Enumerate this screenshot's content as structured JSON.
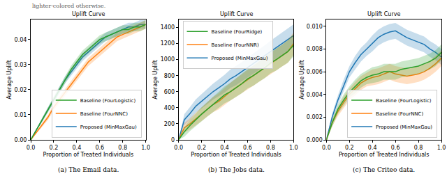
{
  "note": "lighter-colored otherwise.",
  "chart_data": [
    {
      "type": "line",
      "title": "Uplift Curve",
      "caption": "(a) The Email data.",
      "x_label": "Proportion of Treated Individuals",
      "y_label": "Average Uplift",
      "x": [
        0,
        0.05,
        0.1,
        0.15,
        0.2,
        0.25,
        0.3,
        0.35,
        0.4,
        0.45,
        0.5,
        0.55,
        0.6,
        0.65,
        0.7,
        0.75,
        0.8,
        0.85,
        0.9,
        0.95,
        1.0
      ],
      "series": [
        {
          "name": "Proposed (MinMaxGau)",
          "color": "#1f77b4",
          "values": [
            0,
            0.004,
            0.008,
            0.012,
            0.016,
            0.02,
            0.024,
            0.027,
            0.03,
            0.033,
            0.035,
            0.037,
            0.039,
            0.041,
            0.042,
            0.043,
            0.044,
            0.045,
            0.045,
            0.046,
            0.046
          ],
          "error": [
            0,
            0.0005,
            0.0008,
            0.001,
            0.0012,
            0.0013,
            0.0014,
            0.0015,
            0.0015,
            0.0016,
            0.0016,
            0.0016,
            0.0017,
            0.0017,
            0.0017,
            0.0017,
            0.0017,
            0.0017,
            0.0017,
            0.0017,
            0.0017
          ]
        },
        {
          "name": "Baseline (FourNNC)",
          "color": "#ff7f0e",
          "values": [
            0,
            0.003,
            0.006,
            0.009,
            0.013,
            0.016,
            0.019,
            0.022,
            0.025,
            0.028,
            0.031,
            0.033,
            0.035,
            0.037,
            0.039,
            0.041,
            0.042,
            0.043,
            0.044,
            0.045,
            0.046
          ],
          "error": [
            0,
            0.0005,
            0.0008,
            0.001,
            0.0012,
            0.0013,
            0.0014,
            0.0015,
            0.0015,
            0.0016,
            0.0016,
            0.0016,
            0.0017,
            0.0017,
            0.0017,
            0.0017,
            0.0017,
            0.0017,
            0.0017,
            0.0017,
            0.0017
          ]
        },
        {
          "name": "Baseline (FourLogistic)",
          "color": "#2ca02c",
          "values": [
            0,
            0.004,
            0.008,
            0.012,
            0.016,
            0.02,
            0.024,
            0.028,
            0.031,
            0.034,
            0.036,
            0.038,
            0.04,
            0.041,
            0.042,
            0.043,
            0.044,
            0.044,
            0.045,
            0.045,
            0.046
          ],
          "error": [
            0,
            0.0005,
            0.0008,
            0.001,
            0.0012,
            0.0013,
            0.0014,
            0.0015,
            0.0015,
            0.0016,
            0.0016,
            0.0016,
            0.0017,
            0.0017,
            0.0017,
            0.0017,
            0.0017,
            0.0017,
            0.0017,
            0.0017,
            0.0017
          ]
        }
      ],
      "xlim": [
        0,
        1.0
      ],
      "xticks": [
        {
          "value": 0,
          "label": "0.0"
        },
        {
          "value": 0.2,
          "label": "0.2"
        },
        {
          "value": 0.4,
          "label": "0.4"
        },
        {
          "value": 0.6,
          "label": "0.6"
        },
        {
          "value": 0.8,
          "label": "0.8"
        },
        {
          "value": 1.0,
          "label": "1.0"
        }
      ],
      "ylim": [
        0,
        0.048
      ],
      "yticks": [
        {
          "value": 0,
          "label": "0.00"
        },
        0.01,
        0.02,
        0.03,
        0.04
      ],
      "legend": "lower right",
      "grid": false
    },
    {
      "type": "line",
      "title": "Uplift Curve",
      "caption": "(b) The Jobs data.",
      "x_label": "Proportion of Treated Individuals",
      "y_label": "Average Uplift",
      "x": [
        0,
        0.05,
        0.1,
        0.15,
        0.2,
        0.25,
        0.3,
        0.35,
        0.4,
        0.45,
        0.5,
        0.55,
        0.6,
        0.65,
        0.7,
        0.75,
        0.8,
        0.85,
        0.9,
        0.95,
        1.0
      ],
      "series": [
        {
          "name": "Proposed (MinMaxGau)",
          "color": "#1f77b4",
          "values": [
            0,
            250,
            330,
            420,
            480,
            540,
            600,
            650,
            700,
            760,
            800,
            850,
            900,
            950,
            1000,
            1050,
            1100,
            1150,
            1200,
            1250,
            1300
          ],
          "error": [
            0,
            70,
            80,
            85,
            90,
            95,
            100,
            105,
            110,
            115,
            120,
            120,
            125,
            125,
            130,
            130,
            135,
            135,
            140,
            140,
            140
          ]
        },
        {
          "name": "Baseline (FourNNR)",
          "color": "#ff7f0e",
          "values": [
            0,
            150,
            200,
            260,
            320,
            380,
            440,
            480,
            540,
            600,
            650,
            700,
            750,
            800,
            850,
            900,
            950,
            1000,
            1050,
            1100,
            1200
          ],
          "error": [
            0,
            60,
            70,
            80,
            85,
            90,
            95,
            100,
            105,
            110,
            115,
            120,
            120,
            125,
            125,
            130,
            130,
            135,
            135,
            140,
            140
          ]
        },
        {
          "name": "Baseline (FourRidge)",
          "color": "#2ca02c",
          "values": [
            0,
            100,
            180,
            250,
            320,
            380,
            440,
            500,
            560,
            600,
            650,
            700,
            760,
            800,
            850,
            900,
            960,
            1000,
            1050,
            1100,
            1180
          ],
          "error": [
            0,
            60,
            70,
            80,
            85,
            90,
            95,
            100,
            105,
            110,
            115,
            120,
            120,
            125,
            125,
            130,
            130,
            135,
            135,
            140,
            140
          ]
        }
      ],
      "xlim": [
        0,
        1.0
      ],
      "xticks": [
        {
          "value": 0,
          "label": "0.0"
        },
        {
          "value": 0.2,
          "label": "0.2"
        },
        {
          "value": 0.4,
          "label": "0.4"
        },
        {
          "value": 0.6,
          "label": "0.6"
        },
        {
          "value": 0.8,
          "label": "0.8"
        },
        {
          "value": 1.0,
          "label": "1.0"
        }
      ],
      "ylim": [
        0,
        1500
      ],
      "yticks": [
        0,
        200,
        400,
        600,
        800,
        1000,
        1200,
        1400
      ],
      "legend": "upper left",
      "grid": false
    },
    {
      "type": "line",
      "title": "Uplift Curve",
      "caption": "(c) The Criteo data.",
      "x_label": "Proportion of Treated Individuals",
      "y_label": "Average Uplift",
      "x": [
        0,
        0.05,
        0.1,
        0.15,
        0.2,
        0.25,
        0.3,
        0.35,
        0.4,
        0.45,
        0.5,
        0.55,
        0.6,
        0.65,
        0.7,
        0.75,
        0.8,
        0.85,
        0.9,
        0.95,
        1.0
      ],
      "series": [
        {
          "name": "Proposed (MinMaxGau)",
          "color": "#1f77b4",
          "values": [
            0,
            0.002,
            0.0035,
            0.0048,
            0.006,
            0.0068,
            0.0075,
            0.008,
            0.0085,
            0.009,
            0.0093,
            0.0095,
            0.0096,
            0.0093,
            0.009,
            0.0088,
            0.0086,
            0.0084,
            0.008,
            0.0077,
            0.0073
          ],
          "error": [
            0,
            0.0003,
            0.0004,
            0.0005,
            0.0005,
            0.0006,
            0.0006,
            0.0006,
            0.0007,
            0.0007,
            0.0007,
            0.0007,
            0.0007,
            0.0007,
            0.0007,
            0.0007,
            0.0007,
            0.0007,
            0.0007,
            0.0007,
            0.0007
          ]
        },
        {
          "name": "Baseline (FourNNC)",
          "color": "#ff7f0e",
          "values": [
            0,
            0.0015,
            0.0025,
            0.0033,
            0.004,
            0.0045,
            0.005,
            0.0053,
            0.0055,
            0.0056,
            0.0058,
            0.006,
            0.0058,
            0.0057,
            0.0056,
            0.0057,
            0.0058,
            0.006,
            0.0063,
            0.0067,
            0.0072
          ],
          "error": [
            0,
            0.0003,
            0.0004,
            0.0005,
            0.0005,
            0.0006,
            0.0006,
            0.0006,
            0.0007,
            0.0007,
            0.0007,
            0.0007,
            0.0007,
            0.0007,
            0.0007,
            0.0007,
            0.0007,
            0.0007,
            0.0007,
            0.0007,
            0.0007
          ]
        },
        {
          "name": "Baseline (FourLogistic)",
          "color": "#2ca02c",
          "values": [
            0,
            0.0015,
            0.0027,
            0.0035,
            0.0042,
            0.0047,
            0.0052,
            0.0055,
            0.0057,
            0.0058,
            0.006,
            0.006,
            0.006,
            0.0062,
            0.0063,
            0.0064,
            0.0065,
            0.0067,
            0.0069,
            0.0072,
            0.0077
          ],
          "error": [
            0,
            0.0003,
            0.0004,
            0.0005,
            0.0005,
            0.0006,
            0.0006,
            0.0006,
            0.0007,
            0.0007,
            0.0007,
            0.0007,
            0.0007,
            0.0007,
            0.0007,
            0.0007,
            0.0007,
            0.0007,
            0.0007,
            0.0007,
            0.0007
          ]
        }
      ],
      "xlim": [
        0,
        1.0
      ],
      "xticks": [
        {
          "value": 0,
          "label": "0.0"
        },
        {
          "value": 0.2,
          "label": "0.2"
        },
        {
          "value": 0.4,
          "label": "0.4"
        },
        {
          "value": 0.6,
          "label": "0.6"
        },
        {
          "value": 0.8,
          "label": "0.8"
        },
        {
          "value": 1.0,
          "label": "1.0"
        }
      ],
      "ylim": [
        0,
        0.0106
      ],
      "yticks": [
        {
          "value": 0,
          "label": "0.000"
        },
        {
          "value": 0.002,
          "label": "0.002"
        },
        {
          "value": 0.004,
          "label": "0.004"
        },
        {
          "value": 0.006,
          "label": "0.006"
        },
        {
          "value": 0.008,
          "label": "0.008"
        },
        {
          "value": 0.01,
          "label": "0.010"
        }
      ],
      "legend": "lower right",
      "grid": false
    }
  ]
}
